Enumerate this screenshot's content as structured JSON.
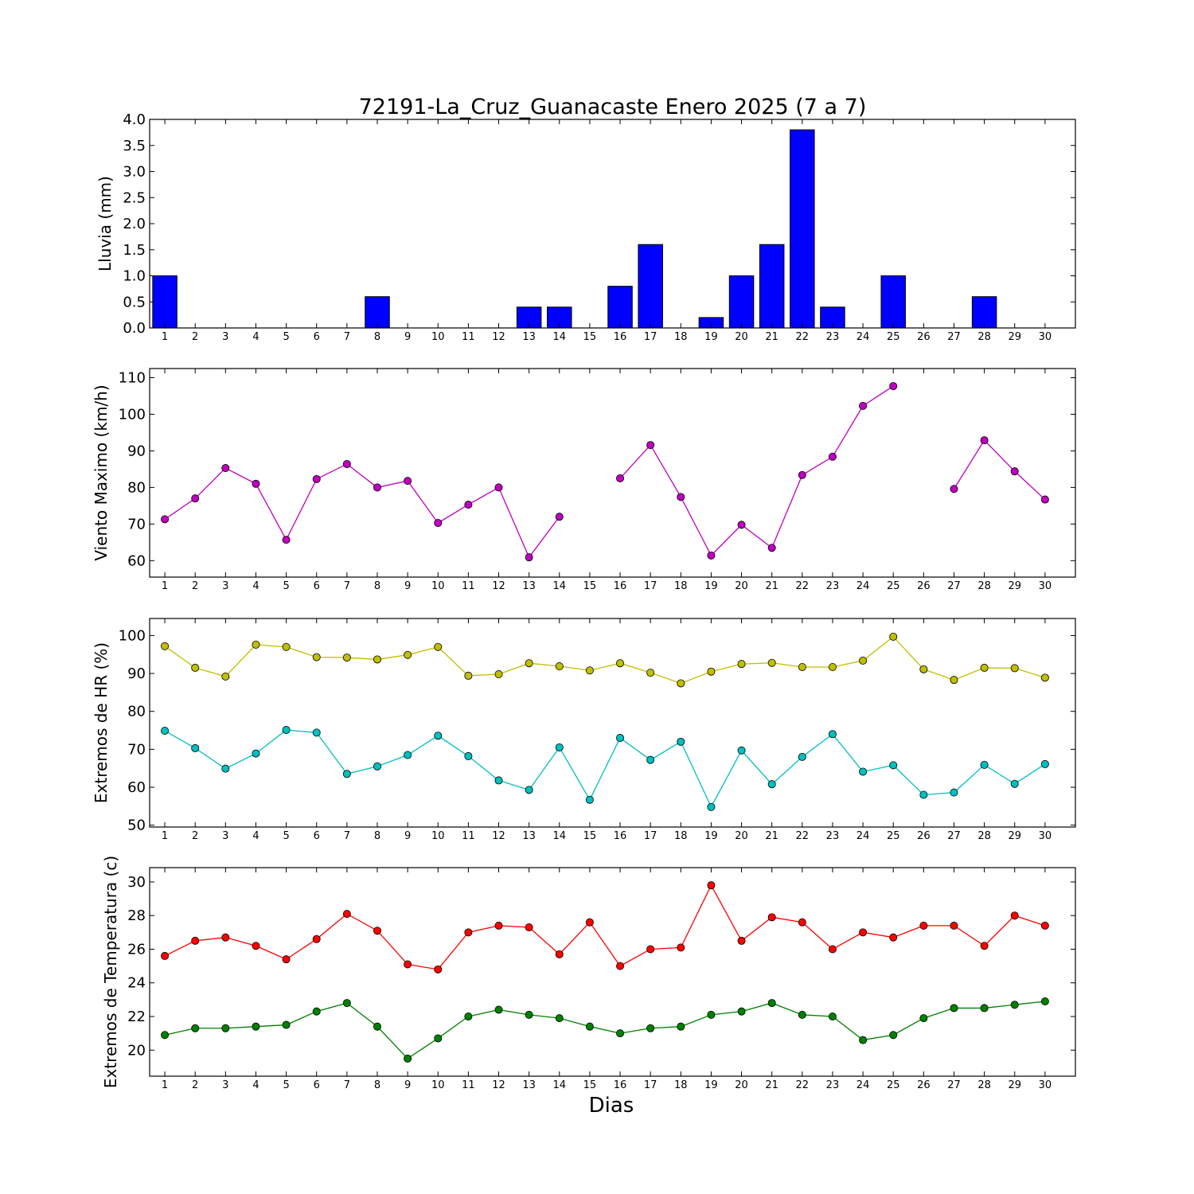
{
  "chart_data": [
    {
      "type": "bar",
      "title": "72191-La_Cruz_Guanacaste Enero 2025  (7 a 7)",
      "ylabel": "Lluvia (mm)",
      "xlabel": "",
      "ylim": [
        0,
        4.0
      ],
      "yticks": [
        "0.0",
        "0.5",
        "1.0",
        "1.5",
        "2.0",
        "2.5",
        "3.0",
        "3.5",
        "4.0"
      ],
      "categories": [
        "1",
        "2",
        "3",
        "4",
        "5",
        "6",
        "7",
        "8",
        "9",
        "10",
        "11",
        "12",
        "13",
        "14",
        "15",
        "16",
        "17",
        "18",
        "19",
        "20",
        "21",
        "22",
        "23",
        "24",
        "25",
        "26",
        "27",
        "28",
        "29",
        "30"
      ],
      "series": [
        {
          "color": "#0000ff",
          "values": [
            1.0,
            0,
            0,
            0,
            0,
            0,
            0,
            0.6,
            0,
            0,
            0,
            0,
            0.4,
            0.4,
            0,
            0.8,
            1.6,
            0,
            0.2,
            1.0,
            1.6,
            3.8,
            0.4,
            0,
            1.0,
            0,
            0,
            0.6,
            0,
            0
          ]
        }
      ]
    },
    {
      "type": "line",
      "title": "",
      "ylabel": "Viento Maximo (km/h)",
      "xlabel": "",
      "ylim": [
        55.5,
        112.5
      ],
      "yticks": [
        "60",
        "70",
        "80",
        "90",
        "100",
        "110"
      ],
      "categories": [
        "1",
        "2",
        "3",
        "4",
        "5",
        "6",
        "7",
        "8",
        "9",
        "10",
        "11",
        "12",
        "13",
        "14",
        "15",
        "16",
        "17",
        "18",
        "19",
        "20",
        "21",
        "22",
        "23",
        "24",
        "25",
        "26",
        "27",
        "28",
        "29",
        "30"
      ],
      "series": [
        {
          "color": "#bf00bf",
          "values": [
            71.3,
            77.0,
            85.3,
            81.0,
            65.7,
            82.3,
            86.4,
            80.0,
            81.8,
            70.3,
            75.3,
            80.0,
            60.9,
            72.0,
            null,
            82.5,
            91.6,
            77.4,
            61.4,
            69.8,
            63.5,
            83.4,
            88.4,
            102.3,
            107.7,
            null,
            79.6,
            92.9,
            84.4,
            76.7
          ]
        }
      ]
    },
    {
      "type": "line",
      "title": "",
      "ylabel": "Extremos de HR (%)",
      "xlabel": "",
      "ylim": [
        49.5,
        104.5
      ],
      "yticks": [
        "50",
        "60",
        "70",
        "80",
        "90",
        "100"
      ],
      "categories": [
        "1",
        "2",
        "3",
        "4",
        "5",
        "6",
        "7",
        "8",
        "9",
        "10",
        "11",
        "12",
        "13",
        "14",
        "15",
        "16",
        "17",
        "18",
        "19",
        "20",
        "21",
        "22",
        "23",
        "24",
        "25",
        "26",
        "27",
        "28",
        "29",
        "30"
      ],
      "series": [
        {
          "color": "#bfbf00",
          "values": [
            97.2,
            91.5,
            89.2,
            97.6,
            97.0,
            94.3,
            94.2,
            93.7,
            94.9,
            97.0,
            89.4,
            89.8,
            92.7,
            91.9,
            90.8,
            92.7,
            90.2,
            87.4,
            90.5,
            92.5,
            92.8,
            91.7,
            91.7,
            93.4,
            99.7,
            91.1,
            88.3,
            91.5,
            91.4,
            88.9
          ]
        },
        {
          "color": "#00bfbf",
          "values": [
            74.9,
            70.3,
            64.9,
            68.9,
            75.1,
            74.4,
            63.5,
            65.5,
            68.5,
            73.6,
            68.2,
            61.8,
            59.3,
            70.5,
            56.7,
            73.0,
            67.2,
            72.0,
            54.8,
            69.7,
            60.8,
            68.0,
            74.0,
            64.1,
            65.8,
            58.0,
            58.6,
            65.9,
            60.9,
            66.1
          ]
        }
      ]
    },
    {
      "type": "line",
      "title": "",
      "ylabel": "Extremos de Temperatura (c)",
      "xlabel": "Dias",
      "ylim": [
        18.45,
        30.85
      ],
      "yticks": [
        "20",
        "22",
        "24",
        "26",
        "28",
        "30"
      ],
      "categories": [
        "1",
        "2",
        "3",
        "4",
        "5",
        "6",
        "7",
        "8",
        "9",
        "10",
        "11",
        "12",
        "13",
        "14",
        "15",
        "16",
        "17",
        "18",
        "19",
        "20",
        "21",
        "22",
        "23",
        "24",
        "25",
        "26",
        "27",
        "28",
        "29",
        "30"
      ],
      "series": [
        {
          "color": "#ff0000",
          "values": [
            25.6,
            26.5,
            26.7,
            26.2,
            25.4,
            26.6,
            28.1,
            27.1,
            25.1,
            24.8,
            27.0,
            27.4,
            27.3,
            25.7,
            27.6,
            25.0,
            26.0,
            26.1,
            29.8,
            26.5,
            27.9,
            27.6,
            26.0,
            27.0,
            26.7,
            27.4,
            27.4,
            26.2,
            28.0,
            27.4
          ]
        },
        {
          "color": "#008000",
          "values": [
            20.9,
            21.3,
            21.3,
            21.4,
            21.5,
            22.3,
            22.8,
            21.4,
            19.5,
            20.7,
            22.0,
            22.4,
            22.1,
            21.9,
            21.4,
            21.0,
            21.3,
            21.4,
            22.1,
            22.3,
            22.8,
            22.1,
            22.0,
            20.6,
            20.9,
            21.9,
            22.5,
            22.5,
            22.7,
            22.9
          ]
        }
      ]
    }
  ]
}
